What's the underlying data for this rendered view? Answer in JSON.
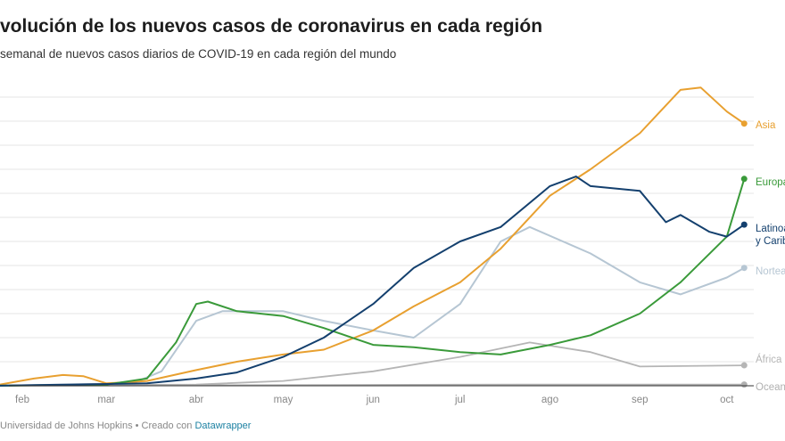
{
  "header": {
    "title": "volución de los nuevos casos de coronavirus en cada región",
    "subtitle": "semanal de nuevos casos diarios de COVID-19 en cada región del mundo"
  },
  "footer": {
    "source": "Universidad de Johns Hopkins • Creado con ",
    "link": "Datawrapper"
  },
  "chart_data": {
    "type": "line",
    "title": "volución de los nuevos casos de coronavirus en cada región",
    "subtitle": "semanal de nuevos casos diarios de COVID-19 en cada región del mundo",
    "xlabel": "",
    "ylabel": "",
    "x_ticks": [
      {
        "date": "2020-02-01",
        "label": "feb"
      },
      {
        "date": "2020-03-01",
        "label": "mar"
      },
      {
        "date": "2020-04-01",
        "label": "abr"
      },
      {
        "date": "2020-05-01",
        "label": "may"
      },
      {
        "date": "2020-06-01",
        "label": "jun"
      },
      {
        "date": "2020-07-01",
        "label": "jul"
      },
      {
        "date": "2020-08-01",
        "label": "ago"
      },
      {
        "date": "2020-09-01",
        "label": "sep"
      },
      {
        "date": "2020-10-01",
        "label": "oct"
      }
    ],
    "y_tick_labels_visible": [
      "0",
      "0",
      "0"
    ],
    "ylim": [
      0,
      12
    ],
    "grid": true,
    "legend": "direct labels at line ends (right)",
    "series": [
      {
        "name": "Asia",
        "color": "#e8a030",
        "points": [
          [
            "2020-01-22",
            0
          ],
          [
            "2020-02-05",
            0.3
          ],
          [
            "2020-02-15",
            0.45
          ],
          [
            "2020-02-22",
            0.4
          ],
          [
            "2020-03-01",
            0.1
          ],
          [
            "2020-03-15",
            0.2
          ],
          [
            "2020-04-01",
            0.65
          ],
          [
            "2020-04-15",
            1.0
          ],
          [
            "2020-05-01",
            1.3
          ],
          [
            "2020-05-15",
            1.5
          ],
          [
            "2020-06-01",
            2.3
          ],
          [
            "2020-06-15",
            3.3
          ],
          [
            "2020-07-01",
            4.3
          ],
          [
            "2020-07-15",
            5.7
          ],
          [
            "2020-08-01",
            7.9
          ],
          [
            "2020-08-15",
            9.0
          ],
          [
            "2020-09-01",
            10.5
          ],
          [
            "2020-09-15",
            12.3
          ],
          [
            "2020-09-22",
            12.4
          ],
          [
            "2020-10-01",
            11.4
          ],
          [
            "2020-10-07",
            10.9
          ]
        ]
      },
      {
        "name": "Europa",
        "color": "#3a9a3a",
        "points": [
          [
            "2020-01-22",
            0
          ],
          [
            "2020-03-01",
            0.05
          ],
          [
            "2020-03-15",
            0.3
          ],
          [
            "2020-03-25",
            1.8
          ],
          [
            "2020-04-01",
            3.4
          ],
          [
            "2020-04-05",
            3.5
          ],
          [
            "2020-04-15",
            3.1
          ],
          [
            "2020-05-01",
            2.9
          ],
          [
            "2020-05-15",
            2.4
          ],
          [
            "2020-06-01",
            1.7
          ],
          [
            "2020-06-15",
            1.6
          ],
          [
            "2020-07-01",
            1.4
          ],
          [
            "2020-07-15",
            1.3
          ],
          [
            "2020-08-01",
            1.7
          ],
          [
            "2020-08-15",
            2.1
          ],
          [
            "2020-09-01",
            3.0
          ],
          [
            "2020-09-15",
            4.3
          ],
          [
            "2020-10-01",
            6.2
          ],
          [
            "2020-10-07",
            8.6
          ]
        ]
      },
      {
        "name": "Latinoa / y Carib",
        "color": "#14406e",
        "points": [
          [
            "2020-01-22",
            0
          ],
          [
            "2020-03-15",
            0.1
          ],
          [
            "2020-04-01",
            0.3
          ],
          [
            "2020-04-15",
            0.55
          ],
          [
            "2020-05-01",
            1.2
          ],
          [
            "2020-05-15",
            2.0
          ],
          [
            "2020-06-01",
            3.4
          ],
          [
            "2020-06-15",
            4.9
          ],
          [
            "2020-07-01",
            6.0
          ],
          [
            "2020-07-15",
            6.6
          ],
          [
            "2020-08-01",
            8.3
          ],
          [
            "2020-08-10",
            8.7
          ],
          [
            "2020-08-15",
            8.3
          ],
          [
            "2020-09-01",
            8.1
          ],
          [
            "2020-09-10",
            6.8
          ],
          [
            "2020-09-15",
            7.1
          ],
          [
            "2020-09-25",
            6.4
          ],
          [
            "2020-10-01",
            6.2
          ],
          [
            "2020-10-07",
            6.7
          ]
        ]
      },
      {
        "name": "Nortea",
        "color": "#b6c6d3",
        "points": [
          [
            "2020-01-22",
            0
          ],
          [
            "2020-03-10",
            0.1
          ],
          [
            "2020-03-20",
            0.6
          ],
          [
            "2020-04-01",
            2.7
          ],
          [
            "2020-04-10",
            3.1
          ],
          [
            "2020-05-01",
            3.1
          ],
          [
            "2020-05-15",
            2.7
          ],
          [
            "2020-06-01",
            2.3
          ],
          [
            "2020-06-15",
            2.0
          ],
          [
            "2020-07-01",
            3.4
          ],
          [
            "2020-07-15",
            6.0
          ],
          [
            "2020-07-25",
            6.6
          ],
          [
            "2020-08-15",
            5.5
          ],
          [
            "2020-09-01",
            4.3
          ],
          [
            "2020-09-15",
            3.8
          ],
          [
            "2020-10-01",
            4.5
          ],
          [
            "2020-10-07",
            4.9
          ]
        ]
      },
      {
        "name": "África",
        "color": "#b5b5b5",
        "points": [
          [
            "2020-01-22",
            0
          ],
          [
            "2020-04-01",
            0.05
          ],
          [
            "2020-05-01",
            0.2
          ],
          [
            "2020-06-01",
            0.6
          ],
          [
            "2020-07-01",
            1.2
          ],
          [
            "2020-07-25",
            1.8
          ],
          [
            "2020-08-15",
            1.4
          ],
          [
            "2020-09-01",
            0.8
          ],
          [
            "2020-10-07",
            0.85
          ]
        ]
      },
      {
        "name": "Oceani",
        "color": "#b0b0b0",
        "points": [
          [
            "2020-01-22",
            0
          ],
          [
            "2020-07-25",
            0.05
          ],
          [
            "2020-10-07",
            0.05
          ]
        ]
      }
    ]
  }
}
